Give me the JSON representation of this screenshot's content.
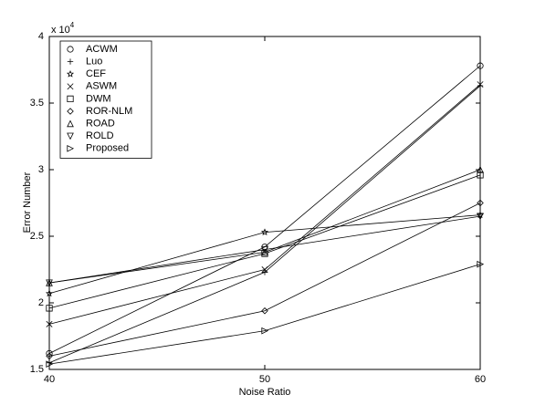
{
  "chart_data": {
    "type": "line",
    "xlabel": "Noise Ratio",
    "ylabel": "Error Number",
    "y_multiplier": "x 10",
    "y_multiplier_exponent": "4",
    "x": [
      40,
      50,
      60
    ],
    "xlim": [
      40,
      60
    ],
    "xticks": [
      40,
      50,
      60
    ],
    "ylim": [
      1.5,
      4
    ],
    "yticks": [
      1.5,
      2,
      2.5,
      3,
      3.5,
      4
    ],
    "grid": false,
    "legend_position": "upper-left",
    "series": [
      {
        "name": "ACWM",
        "color": "#000000",
        "marker": "circle",
        "values": [
          1.62,
          2.42,
          3.78
        ]
      },
      {
        "name": "Luo",
        "color": "#000000",
        "marker": "plus",
        "values": [
          1.55,
          2.23,
          3.63
        ]
      },
      {
        "name": "CEF",
        "color": "#000000",
        "marker": "star",
        "values": [
          2.07,
          2.53,
          2.66
        ]
      },
      {
        "name": "ASWM",
        "color": "#000000",
        "marker": "x",
        "values": [
          1.84,
          2.25,
          3.64
        ]
      },
      {
        "name": "DWM",
        "color": "#000000",
        "marker": "square",
        "values": [
          1.96,
          2.37,
          2.96
        ]
      },
      {
        "name": "ROR-NLM",
        "color": "#000000",
        "marker": "diamond",
        "values": [
          1.6,
          1.94,
          2.75
        ]
      },
      {
        "name": "ROAD",
        "color": "#000000",
        "marker": "triangle-up",
        "values": [
          2.15,
          2.38,
          3.0
        ]
      },
      {
        "name": "ROLD",
        "color": "#000000",
        "marker": "triangle-down",
        "values": [
          2.15,
          2.4,
          2.65
        ]
      },
      {
        "name": "Proposed",
        "color": "#000000",
        "marker": "triangle-right",
        "values": [
          1.54,
          1.79,
          2.29
        ]
      }
    ]
  }
}
